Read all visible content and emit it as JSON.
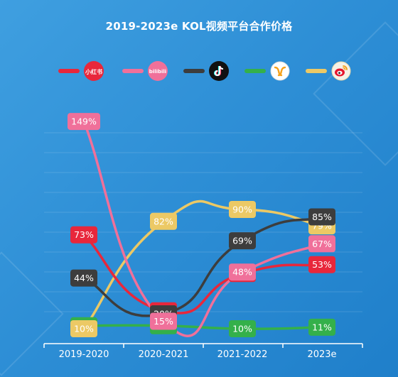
{
  "chart_data": {
    "type": "line",
    "title": "2019-2023e KOL视频平台合作价格",
    "categories": [
      "2019-2020",
      "2020-2021",
      "2021-2022",
      "2023e"
    ],
    "ylim": [
      0,
      160
    ],
    "grid": true,
    "legend_position": "top",
    "series": [
      {
        "icon": "xiaohongshu-icon",
        "icon_text": "小红书",
        "color": "#e8273b",
        "values": [
          73,
          22,
          47,
          53
        ],
        "labels": [
          "73%",
          "22%",
          "47%",
          "53%"
        ]
      },
      {
        "icon": "bilibili-icon",
        "icon_text": "bilibili",
        "color": "#f0709a",
        "values": [
          149,
          15,
          48,
          67
        ],
        "labels": [
          "149%",
          "15%",
          "48%",
          "67%"
        ]
      },
      {
        "icon": "tiktok-icon",
        "icon_text": "",
        "color": "#3d3d3d",
        "values": [
          44,
          20,
          69,
          85
        ],
        "labels": [
          "44%",
          "20%",
          "69%",
          "85%"
        ]
      },
      {
        "icon": "kuaishou-icon",
        "icon_text": "",
        "color": "#34b04a",
        "values": [
          12,
          12,
          10,
          11
        ],
        "labels": [
          "12%",
          "12%",
          "10%",
          "11%"
        ]
      },
      {
        "icon": "weibo-icon",
        "icon_text": "",
        "color": "#ecc965",
        "values": [
          10,
          82,
          90,
          79
        ],
        "labels": [
          "10%",
          "82%",
          "90%",
          "79%"
        ]
      }
    ]
  }
}
